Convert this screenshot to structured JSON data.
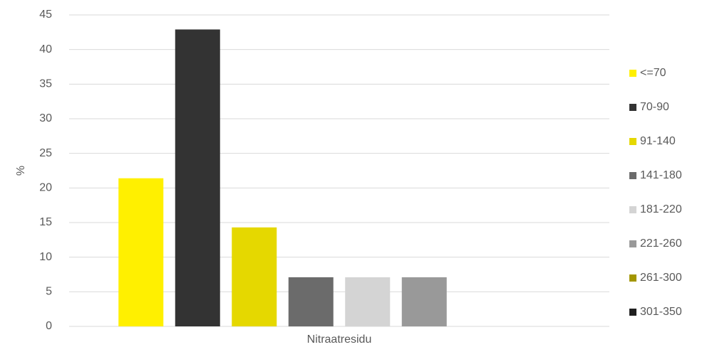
{
  "chart_data": {
    "type": "bar",
    "categories": [
      "Nitraatresidu"
    ],
    "y_label": "%",
    "series": [
      {
        "name": "<=70",
        "color": "#fff000",
        "values": [
          21.4
        ]
      },
      {
        "name": "70-90",
        "color": "#333333",
        "values": [
          42.9
        ]
      },
      {
        "name": "91-140",
        "color": "#e5d800",
        "values": [
          14.3
        ]
      },
      {
        "name": "141-180",
        "color": "#6b6b6b",
        "values": [
          7.1
        ]
      },
      {
        "name": "181-220",
        "color": "#d4d4d4",
        "values": [
          7.1
        ]
      },
      {
        "name": "221-260",
        "color": "#999999",
        "values": [
          7.1
        ]
      },
      {
        "name": "261-300",
        "color": "#a39600",
        "values": [
          0
        ]
      },
      {
        "name": "301-350",
        "color": "#1f1f1f",
        "values": [
          0
        ]
      }
    ],
    "ylim": [
      0,
      45
    ],
    "yticks": [
      0,
      5,
      10,
      15,
      20,
      25,
      30,
      35,
      40,
      45
    ],
    "grid": true,
    "legend": "right"
  }
}
